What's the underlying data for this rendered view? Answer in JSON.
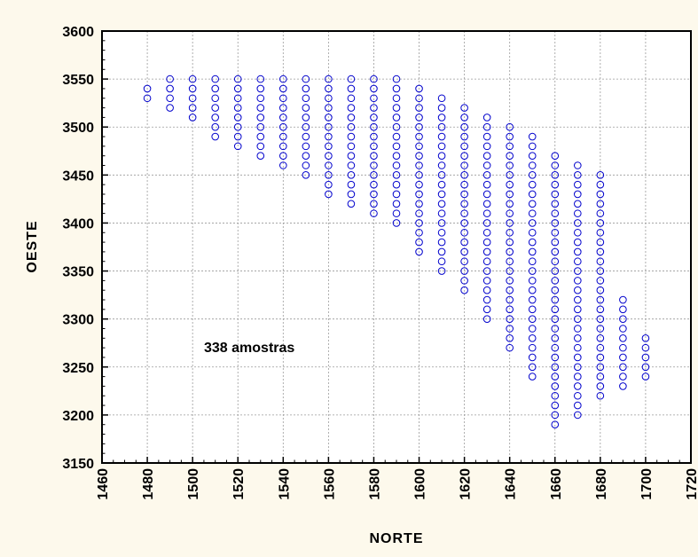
{
  "chart_data": {
    "type": "scatter",
    "title": "",
    "xlabel": "NORTE",
    "ylabel": "OESTE",
    "xlim": [
      1460,
      1720
    ],
    "ylim": [
      3150,
      3600
    ],
    "xticks": [
      1460,
      1480,
      1500,
      1520,
      1540,
      1560,
      1580,
      1600,
      1620,
      1640,
      1660,
      1680,
      1700,
      1720
    ],
    "yticks": [
      3150,
      3200,
      3250,
      3300,
      3350,
      3400,
      3450,
      3500,
      3550,
      3600
    ],
    "grid": true,
    "annotation": "338 amostras",
    "marker": "open-circle",
    "marker_color": "#0000cc",
    "columns_note": "points lie on a regular grid: each column x has y from y_min to y_max in steps of 10",
    "columns": [
      {
        "x": 1480,
        "y_min": 3530,
        "y_max": 3540
      },
      {
        "x": 1490,
        "y_min": 3520,
        "y_max": 3550
      },
      {
        "x": 1500,
        "y_min": 3510,
        "y_max": 3550
      },
      {
        "x": 1510,
        "y_min": 3490,
        "y_max": 3550
      },
      {
        "x": 1520,
        "y_min": 3480,
        "y_max": 3550
      },
      {
        "x": 1530,
        "y_min": 3470,
        "y_max": 3550
      },
      {
        "x": 1540,
        "y_min": 3460,
        "y_max": 3550
      },
      {
        "x": 1550,
        "y_min": 3450,
        "y_max": 3550
      },
      {
        "x": 1560,
        "y_min": 3430,
        "y_max": 3550
      },
      {
        "x": 1570,
        "y_min": 3420,
        "y_max": 3550
      },
      {
        "x": 1580,
        "y_min": 3410,
        "y_max": 3550
      },
      {
        "x": 1590,
        "y_min": 3400,
        "y_max": 3550
      },
      {
        "x": 1600,
        "y_min": 3370,
        "y_max": 3540
      },
      {
        "x": 1610,
        "y_min": 3350,
        "y_max": 3530
      },
      {
        "x": 1620,
        "y_min": 3330,
        "y_max": 3520
      },
      {
        "x": 1630,
        "y_min": 3300,
        "y_max": 3510
      },
      {
        "x": 1640,
        "y_min": 3270,
        "y_max": 3500
      },
      {
        "x": 1650,
        "y_min": 3240,
        "y_max": 3490
      },
      {
        "x": 1660,
        "y_min": 3190,
        "y_max": 3470
      },
      {
        "x": 1670,
        "y_min": 3200,
        "y_max": 3460
      },
      {
        "x": 1680,
        "y_min": 3220,
        "y_max": 3450
      },
      {
        "x": 1690,
        "y_min": 3230,
        "y_max": 3320
      },
      {
        "x": 1700,
        "y_min": 3240,
        "y_max": 3280
      }
    ]
  }
}
